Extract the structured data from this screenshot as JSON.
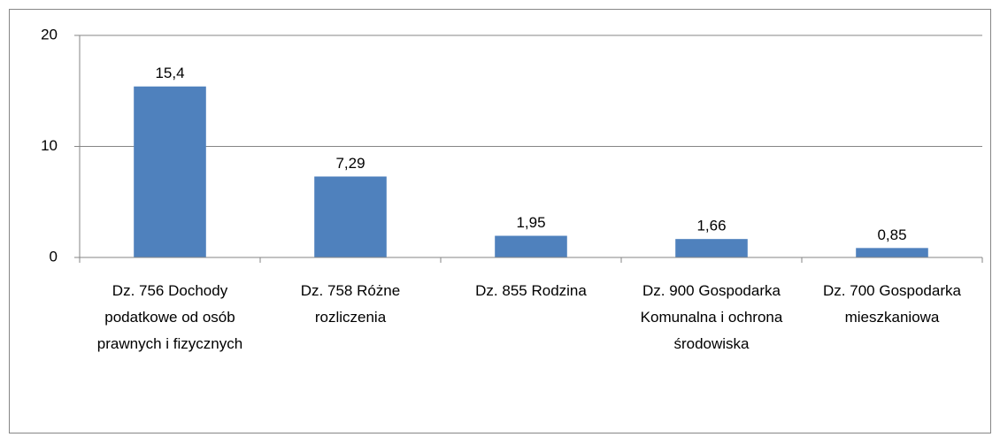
{
  "chart_data": {
    "type": "bar",
    "categories": [
      "Dz. 756 Dochody podatkowe od osób prawnych i fizycznych",
      "Dz. 758 Różne rozliczenia",
      "Dz. 855 Rodzina",
      "Dz. 900 Gospodarka Komunalna i ochrona środowiska",
      "Dz. 700 Gospodarka mieszkaniowa"
    ],
    "values": [
      15.4,
      7.29,
      1.95,
      1.66,
      0.85
    ],
    "value_labels": [
      "15,4",
      "7,29",
      "1,95",
      "1,66",
      "0,85"
    ],
    "color": "#4f81bd",
    "ylim": [
      0,
      20
    ],
    "yticks": [
      0,
      10,
      20
    ],
    "grid": true
  }
}
